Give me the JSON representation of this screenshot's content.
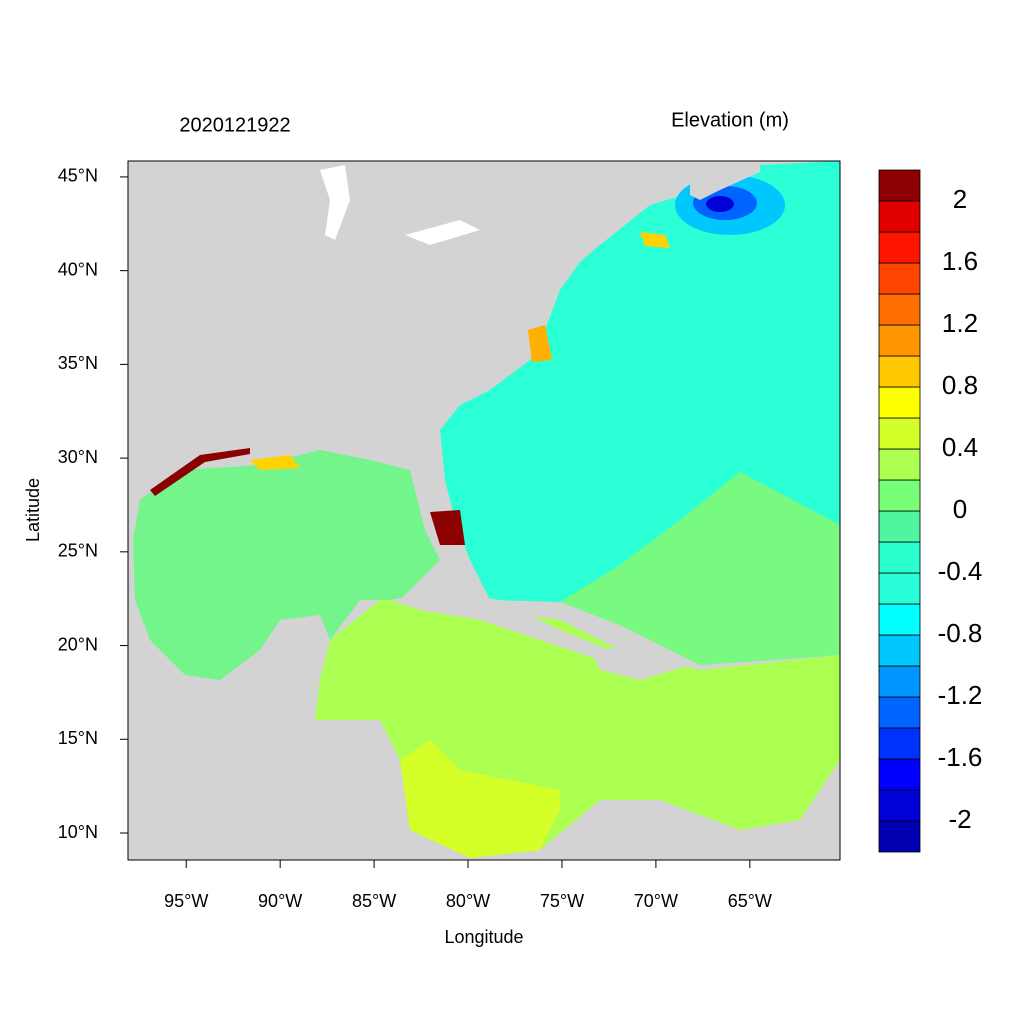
{
  "title": "2020121922",
  "map": {
    "xlabel": "Longitude",
    "ylabel": "Latitude",
    "xlim": [
      -98.1,
      -60.2
    ],
    "ylim": [
      8.56,
      45.85
    ],
    "xticks": [
      {
        "value": -95,
        "label": "95°W"
      },
      {
        "value": -90,
        "label": "90°W"
      },
      {
        "value": -85,
        "label": "85°W"
      },
      {
        "value": -80,
        "label": "80°W"
      },
      {
        "value": -75,
        "label": "75°W"
      },
      {
        "value": -70,
        "label": "70°W"
      },
      {
        "value": -65,
        "label": "65°W"
      }
    ],
    "yticks": [
      {
        "value": 10,
        "label": "10°N"
      },
      {
        "value": 15,
        "label": "15°N"
      },
      {
        "value": 20,
        "label": "20°N"
      },
      {
        "value": 25,
        "label": "25°N"
      },
      {
        "value": 30,
        "label": "30°N"
      },
      {
        "value": 35,
        "label": "35°N"
      },
      {
        "value": 40,
        "label": "40°N"
      },
      {
        "value": 45,
        "label": "45°N"
      }
    ]
  },
  "colorbar": {
    "title": "Elevation (m)",
    "levels": [
      -2,
      -1.8,
      -1.6,
      -1.4,
      -1.2,
      -1,
      -0.8,
      -0.6,
      -0.4,
      -0.2,
      0,
      0.2,
      0.4,
      0.6,
      0.8,
      1,
      1.2,
      1.4,
      1.6,
      1.8,
      2
    ],
    "colors": [
      "#0000b0",
      "#0000d8",
      "#0000ff",
      "#0032ff",
      "#0064ff",
      "#0096ff",
      "#00c8ff",
      "#00ffff",
      "#28ffd8",
      "#2affd0",
      "#50f5a0",
      "#78ff78",
      "#aaff50",
      "#d4ff28",
      "#ffff00",
      "#ffc800",
      "#ff9600",
      "#ff6e00",
      "#ff4600",
      "#ff1400",
      "#e00000",
      "#8b0000"
    ],
    "ticks": [
      -2,
      -1.6,
      -1.2,
      -0.8,
      -0.4,
      0,
      0.4,
      0.8,
      1.2,
      1.6,
      2
    ]
  }
}
